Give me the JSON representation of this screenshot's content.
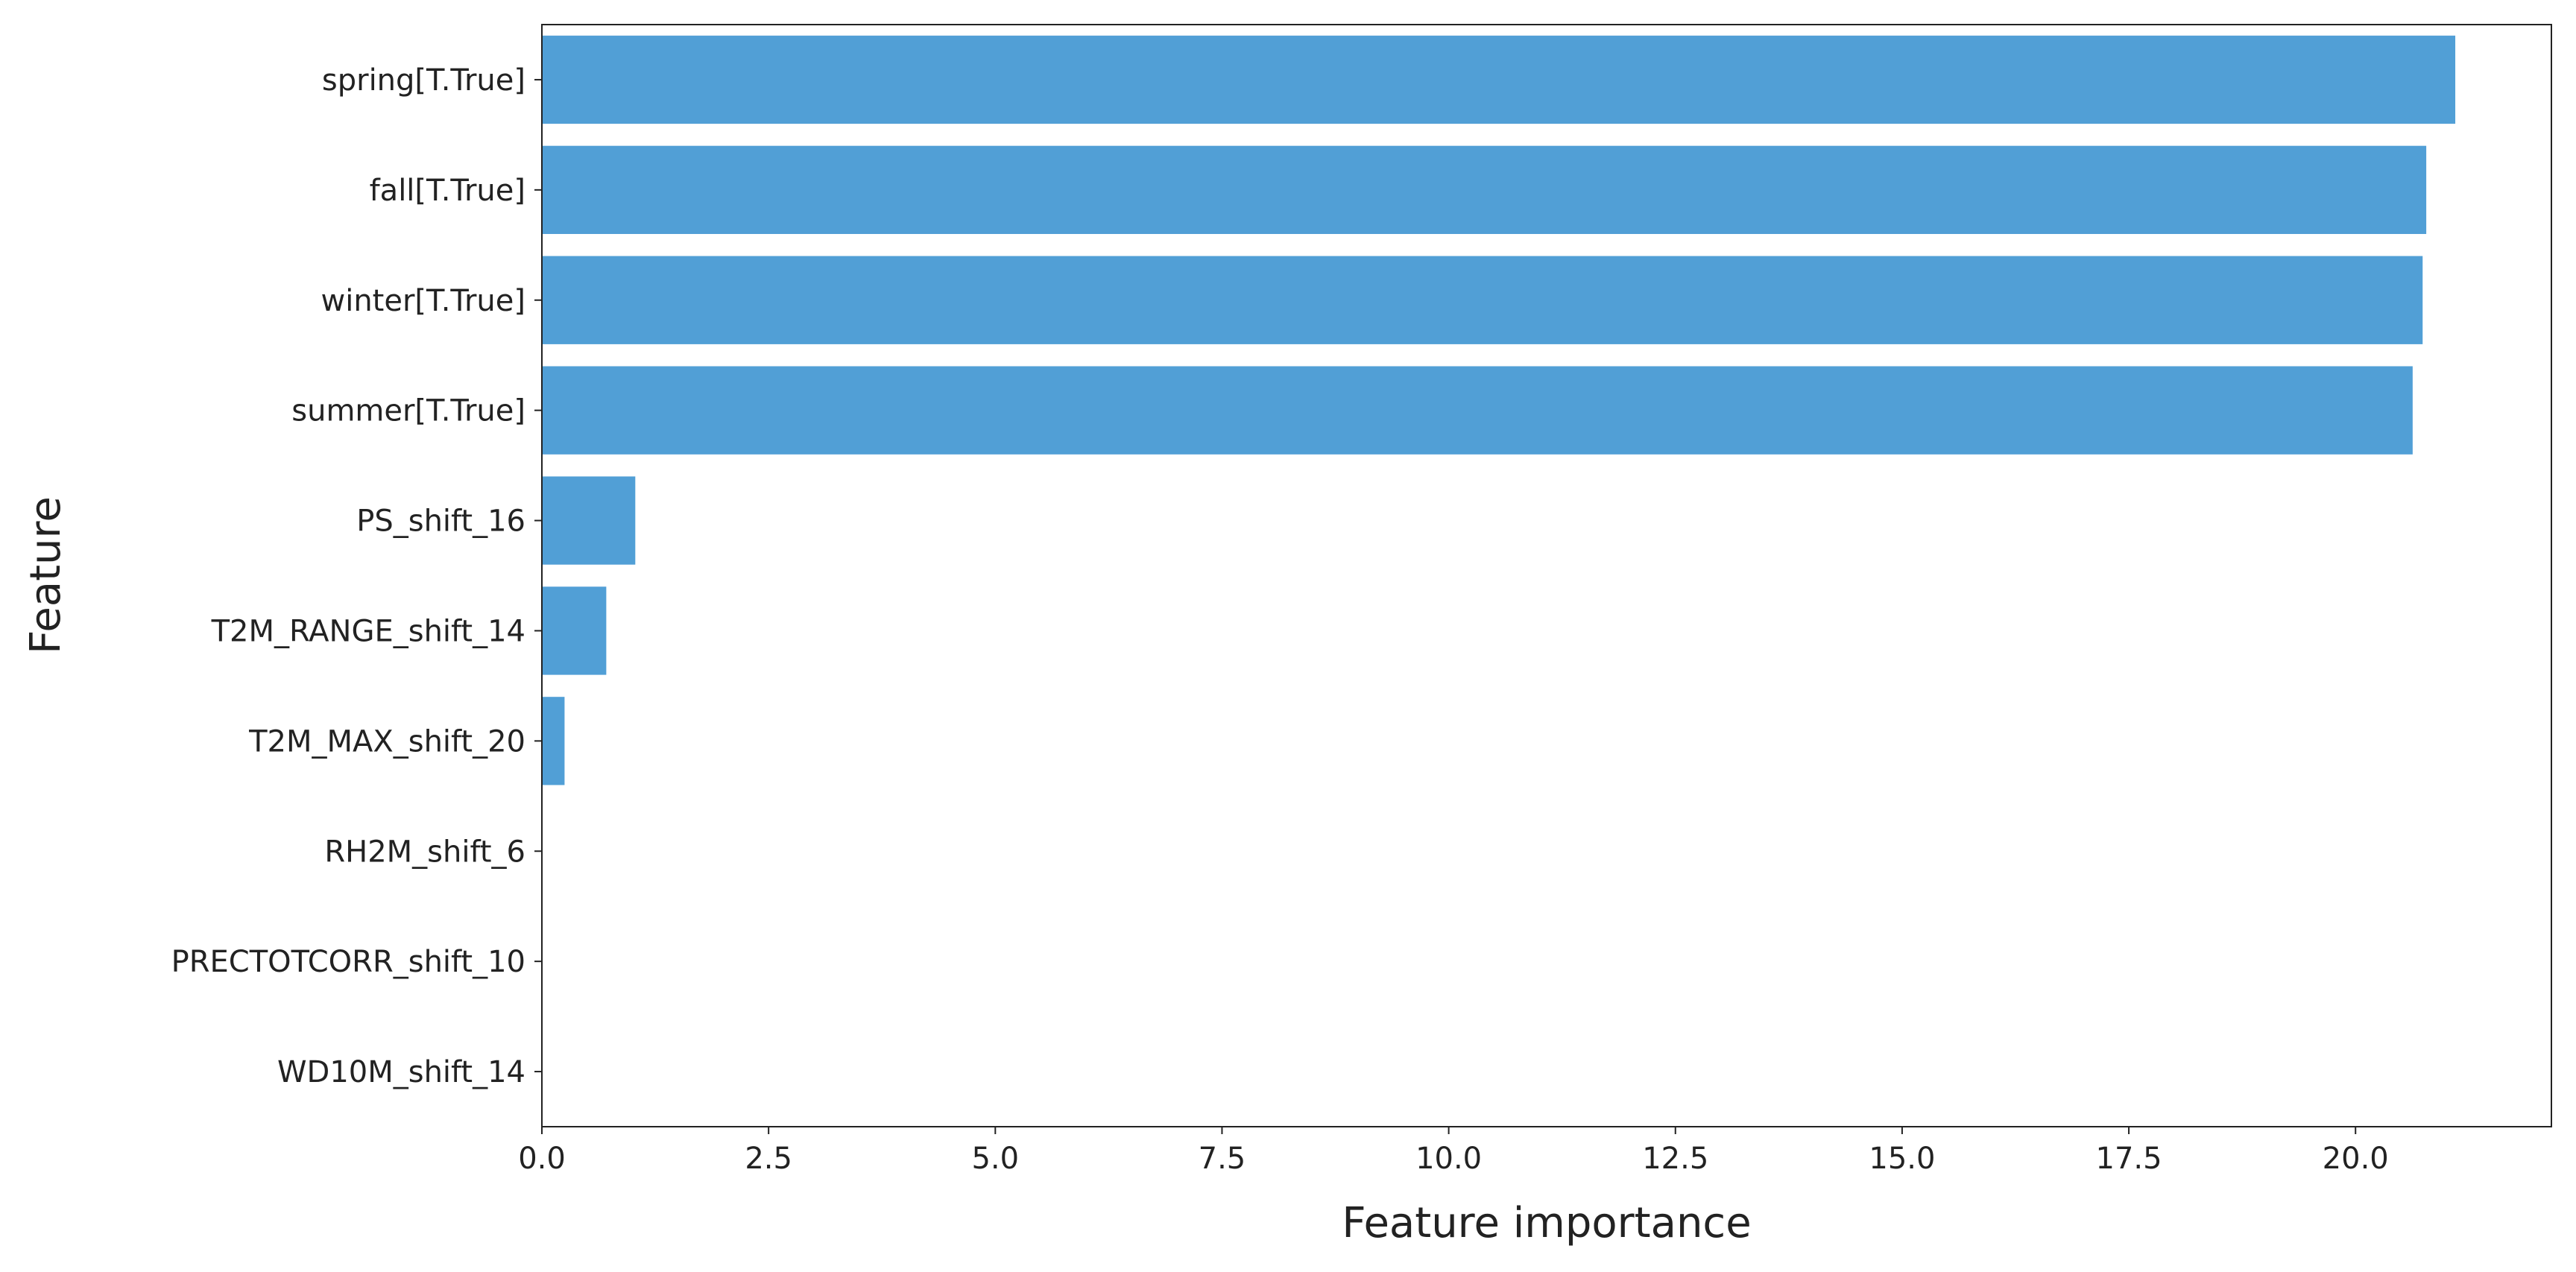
{
  "chart_data": {
    "type": "barh",
    "xlabel": "Feature importance",
    "ylabel": "Feature",
    "categories": [
      "spring[T.True]",
      "fall[T.True]",
      "winter[T.True]",
      "summer[T.True]",
      "PS_shift_16",
      "T2M_RANGE_shift_14",
      "T2M_MAX_shift_20",
      "RH2M_shift_6",
      "PRECTOTCORR_shift_10",
      "WD10M_shift_14"
    ],
    "values": [
      21.1,
      20.78,
      20.74,
      20.63,
      1.03,
      0.71,
      0.25,
      0,
      0,
      0
    ],
    "color": "#519fd6",
    "xlim": [
      0,
      22.16
    ],
    "xticks": [
      {
        "value": 0,
        "label": "0.0"
      },
      2.5,
      {
        "value": 5,
        "label": "5.0"
      },
      7.5,
      {
        "value": 10,
        "label": "10.0"
      },
      12.5,
      {
        "value": 15,
        "label": "15.0"
      },
      17.5,
      {
        "value": 20,
        "label": "20.0"
      }
    ]
  }
}
